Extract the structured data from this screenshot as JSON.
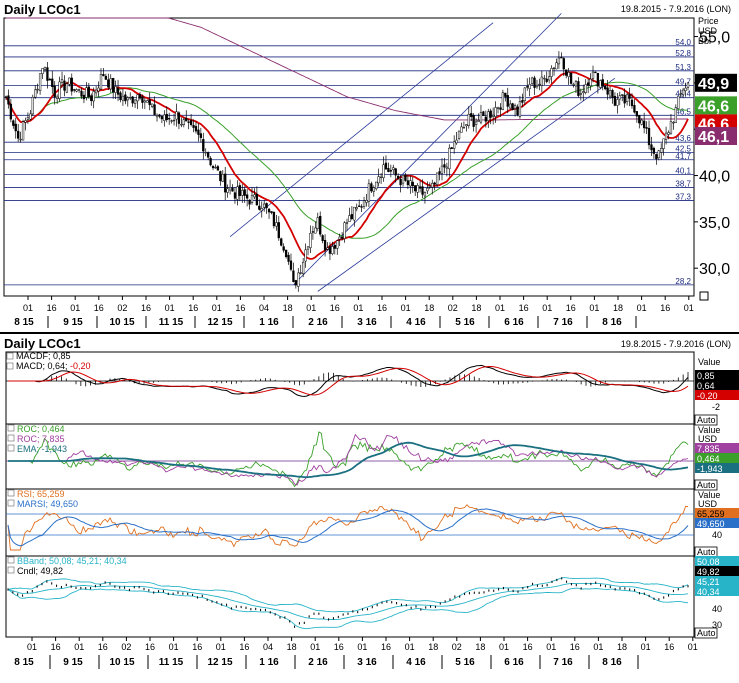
{
  "top": {
    "title": "Daily LCOc1",
    "range": "19.8.2015 - 7.9.2016 (LON)",
    "axis_unit": [
      "Price",
      "USD",
      "Bbl"
    ]
  },
  "bottom": {
    "title": "Daily LCOc1",
    "range": "19.8.2015 - 7.9.2016 (LON)"
  },
  "x_axis": {
    "days": [
      "01",
      "16",
      "01",
      "16",
      "02",
      "16",
      "01",
      "16",
      "01",
      "16",
      "04",
      "18",
      "01",
      "16",
      "01",
      "16",
      "01",
      "18",
      "02",
      "18",
      "01",
      "16",
      "01",
      "16",
      "01",
      "18",
      "01",
      "16",
      "01"
    ],
    "months": [
      "8 15",
      "9 15",
      "10 15",
      "11 15",
      "12 15",
      "1 16",
      "2 16",
      "3 16",
      "4 16",
      "5 16",
      "6 16",
      "7 16",
      "8 16"
    ]
  },
  "chart_data": [
    {
      "type": "candlestick",
      "title": "Daily LCOc1",
      "ylabel": "Price USD Bbl",
      "ylim": [
        27,
        57
      ],
      "y_ticks": [
        30.0,
        35.0,
        40.0,
        45.0,
        50.0,
        55.0
      ],
      "y_tick_labels": [
        "30,0",
        "35,0",
        "40,0",
        "45,0",
        "50,0",
        "55,0"
      ],
      "hlines": [
        54.0,
        52.8,
        51.3,
        49.7,
        48.4,
        46.5,
        43.6,
        42.5,
        41.7,
        40.1,
        38.7,
        37.3,
        28.2
      ],
      "hline_labels": [
        "54,0",
        "52,8",
        "51,3",
        "49,7",
        "48,4",
        "46,5",
        "43,6",
        "42,5",
        "41,7",
        "40,1",
        "38,7",
        "37,3",
        "28,2"
      ],
      "close_path": [
        [
          0,
          48.5
        ],
        [
          5,
          44
        ],
        [
          10,
          47
        ],
        [
          15,
          52
        ],
        [
          20,
          49
        ],
        [
          25,
          50
        ],
        [
          30,
          49
        ],
        [
          35,
          48.5
        ],
        [
          40,
          51
        ],
        [
          45,
          49
        ],
        [
          50,
          48
        ],
        [
          55,
          49
        ],
        [
          60,
          47
        ],
        [
          65,
          46
        ],
        [
          70,
          46.5
        ],
        [
          75,
          45
        ],
        [
          80,
          44
        ],
        [
          85,
          41
        ],
        [
          90,
          39
        ],
        [
          95,
          38
        ],
        [
          100,
          37.5
        ],
        [
          105,
          37
        ],
        [
          110,
          35
        ],
        [
          115,
          32
        ],
        [
          118,
          28
        ],
        [
          122,
          31
        ],
        [
          125,
          34
        ],
        [
          128,
          35
        ],
        [
          132,
          32
        ],
        [
          136,
          33
        ],
        [
          140,
          35
        ],
        [
          145,
          36.5
        ],
        [
          150,
          39
        ],
        [
          155,
          41
        ],
        [
          160,
          40
        ],
        [
          165,
          39
        ],
        [
          170,
          38
        ],
        [
          175,
          38.5
        ],
        [
          180,
          41
        ],
        [
          185,
          44
        ],
        [
          190,
          46
        ],
        [
          195,
          46
        ],
        [
          200,
          47
        ],
        [
          205,
          48.5
        ],
        [
          210,
          47
        ],
        [
          215,
          50
        ],
        [
          220,
          50
        ],
        [
          225,
          52
        ],
        [
          228,
          53
        ],
        [
          232,
          50
        ],
        [
          236,
          49
        ],
        [
          240,
          51
        ],
        [
          245,
          50
        ],
        [
          250,
          48
        ],
        [
          255,
          48
        ],
        [
          258,
          47.5
        ],
        [
          262,
          45
        ],
        [
          265,
          43
        ],
        [
          268,
          42
        ],
        [
          272,
          45
        ],
        [
          275,
          47
        ],
        [
          278,
          49.5
        ],
        [
          280,
          49.9
        ]
      ],
      "last_close": 49.9,
      "series": [
        {
          "name": "",
          "label": "49,9",
          "color": "#000000",
          "value": 49.9
        },
        {
          "name": "",
          "label": "46,6",
          "color": "#3aa02a",
          "value": 46.6
        },
        {
          "name": "",
          "label": "46,6",
          "color": "#d40000",
          "value": 46.6
        },
        {
          "name": "",
          "label": "46,1",
          "color": "#8a2d6e",
          "value": 46.1
        }
      ],
      "value_labels": [
        "49,9",
        "46,6",
        "46,6",
        "46,1"
      ]
    },
    {
      "type": "line",
      "indicator": "MACD",
      "legend": [
        "MACDF; 0,85",
        "MACD; 0,64; -0,20"
      ],
      "legend_prefix": "MACD; 0,64; ",
      "legend_neg": "-0,20",
      "y_ticks": [
        -2
      ],
      "y_tick_labels": [
        "-2"
      ],
      "value_header": "Value",
      "value_labels": [
        "0,85",
        "0,64",
        "-0,20"
      ],
      "values": {
        "MACDF": 0.85,
        "MACD": 0.64,
        "diff": -0.2
      },
      "series": [
        {
          "name": "MACDF",
          "color": "#000000"
        },
        {
          "name": "MACD",
          "color": "#d40000"
        }
      ],
      "auto_label": "Auto"
    },
    {
      "type": "line",
      "indicator": "ROC",
      "legend": [
        "ROC; 0,464",
        "ROC; 7,835",
        "EMA; -1,943"
      ],
      "value_header": "Value",
      "value_unit": "USD",
      "value_labels": [
        "7,835",
        "0,464",
        "-1,943"
      ],
      "values": {
        "ROC_short": 0.464,
        "ROC_long": 7.835,
        "EMA": -1.943
      },
      "series": [
        {
          "name": "ROC",
          "color": "#3aa02a"
        },
        {
          "name": "ROC",
          "color": "#a040a0"
        },
        {
          "name": "EMA",
          "color": "#1a7080"
        }
      ],
      "auto_label": "Auto"
    },
    {
      "type": "line",
      "indicator": "RSI",
      "legend": [
        "RSI; 65,259",
        "MARSI; 49,650"
      ],
      "y_ticks": [
        40
      ],
      "y_tick_labels": [
        "40"
      ],
      "value_header": "Value",
      "value_unit": "USD",
      "value_labels": [
        "65,259",
        "49,650"
      ],
      "values": {
        "RSI": 65.259,
        "MARSI": 49.65
      },
      "series": [
        {
          "name": "RSI",
          "color": "#e07020"
        },
        {
          "name": "MARSI",
          "color": "#2a70c8"
        }
      ],
      "auto_label": "Auto"
    },
    {
      "type": "line",
      "indicator": "BBand",
      "legend": [
        "BBand; 50,08; 45,21; 40,34",
        "Cndl; 49,82"
      ],
      "y_ticks": [
        40,
        30
      ],
      "y_tick_labels": [
        "40",
        "30"
      ],
      "value_labels": [
        "50,08",
        "49,82",
        "45,21",
        "40,34"
      ],
      "values": {
        "upper": 50.08,
        "close": 49.82,
        "middle": 45.21,
        "lower": 40.34
      },
      "series": [
        {
          "name": "BBand",
          "color": "#28b4c8"
        },
        {
          "name": "Cndl",
          "color": "#000000"
        }
      ],
      "auto_label": "Auto"
    }
  ],
  "colors": {
    "red_ma": "#d40000",
    "green_ma": "#3aa02a",
    "purple_ma": "#8a2d6e",
    "hline": "#1c2a80",
    "channel": "#2a3a9a",
    "value_box_black": "#000000"
  }
}
